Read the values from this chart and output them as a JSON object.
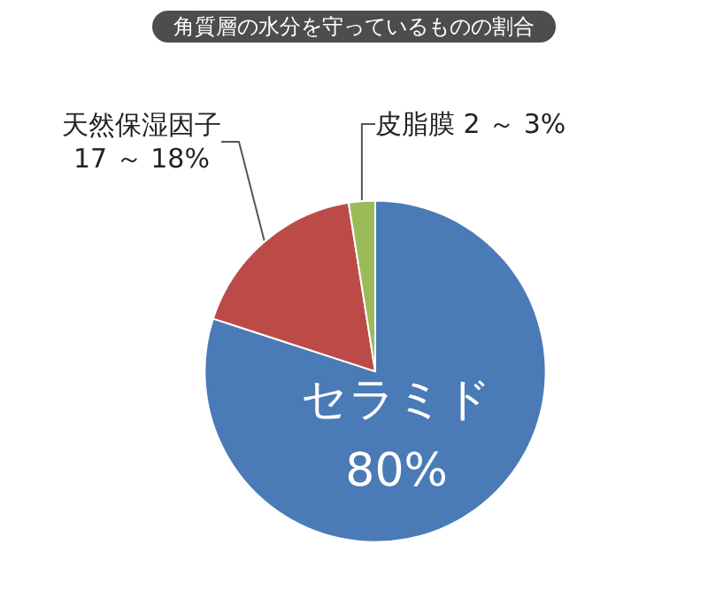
{
  "chart_data": {
    "type": "pie",
    "title": "角質層の水分を守っているものの割合",
    "categories": [
      "セラミド",
      "天然保湿因子",
      "皮脂膜"
    ],
    "values": [
      80,
      17.5,
      2.5
    ],
    "value_labels": [
      "80%",
      "17 ～ 18%",
      "2 ～ 3%"
    ],
    "colors": [
      "#4a7bb7",
      "#bc4b48",
      "#9bbb59"
    ],
    "legend": false
  }
}
